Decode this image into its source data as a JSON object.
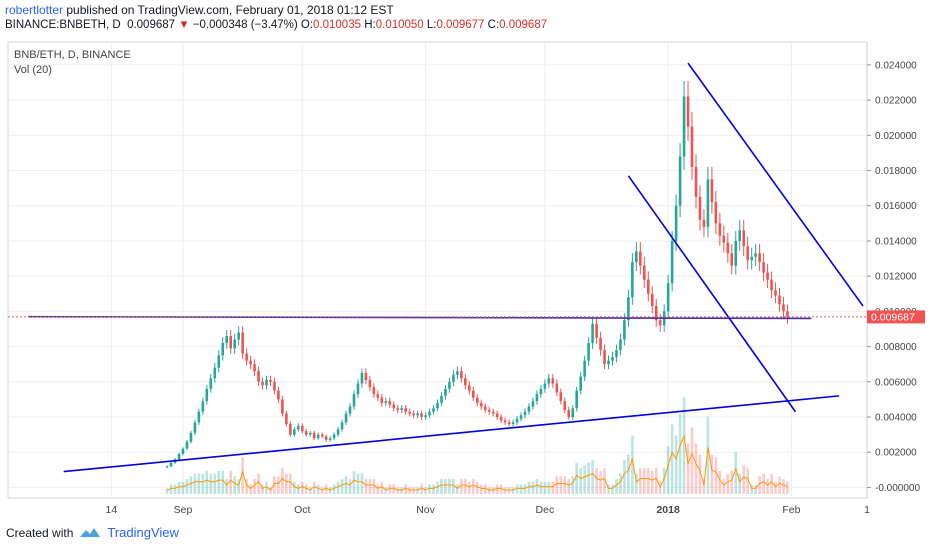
{
  "header": {
    "author": "robertlotter",
    "published_text": "published on TradingView.com, February 01, 2018 01:12 EST",
    "ticker_line": "BINANCE:BNBETH, D",
    "last": "0.009687",
    "change": "−0.000348 (−3.47%)",
    "o_label": "O:",
    "o_value": "0.010035",
    "h_label": "H:",
    "h_value": "0.010050",
    "l_label": "L:",
    "l_value": "0.009677",
    "c_label": "C:",
    "c_value": "0.009687"
  },
  "legend": {
    "symbol": "BNB/ETH, D, BINANCE",
    "volume": "Vol (20)"
  },
  "footer": {
    "created_with": "Created with",
    "brand": "TradingView"
  },
  "colors": {
    "up": "#26a69a",
    "down": "#ef5350",
    "trendline": "#0000e0",
    "support": "#4b2ea8",
    "price_tag": "#ef5350",
    "volume_ma": "#ff9800"
  },
  "chart_data": {
    "type": "candlestick",
    "title": "BNB/ETH, D, BINANCE",
    "x_ticks": [
      "14",
      "Sep",
      "Oct",
      "Nov",
      "Dec",
      "2018",
      "Feb",
      "1"
    ],
    "x_tick_dates": [
      "2017-08-14",
      "2017-09-01",
      "2017-10-01",
      "2017-11-01",
      "2017-12-01",
      "2018-01-01",
      "2018-02-01",
      "2018-02-20"
    ],
    "x_range": [
      "2017-07-19",
      "2018-02-20"
    ],
    "y_ticks": [
      "0.024000",
      "0.022000",
      "0.020000",
      "0.018000",
      "0.016000",
      "0.014000",
      "0.012000",
      "0.010000",
      "0.008000",
      "0.006000",
      "0.004000",
      "0.002000",
      "-0.000000"
    ],
    "ylim": [
      -0.0006,
      0.0253
    ],
    "last_price_label": "0.009687",
    "last_price": 0.009687,
    "grid": true,
    "candles_close": [
      0.0012,
      0.0014,
      0.0016,
      0.0019,
      0.0022,
      0.0026,
      0.0031,
      0.0037,
      0.0043,
      0.0049,
      0.0056,
      0.0062,
      0.0068,
      0.0075,
      0.0082,
      0.0086,
      0.0079,
      0.0084,
      0.0088,
      0.0076,
      0.0072,
      0.007,
      0.0066,
      0.006,
      0.0058,
      0.0061,
      0.006,
      0.0055,
      0.005,
      0.0042,
      0.0036,
      0.003,
      0.0033,
      0.0035,
      0.0032,
      0.003,
      0.0031,
      0.0028,
      0.003,
      0.0029,
      0.0027,
      0.0028,
      0.003,
      0.0033,
      0.0037,
      0.0042,
      0.0046,
      0.0053,
      0.0059,
      0.0065,
      0.0061,
      0.0057,
      0.0053,
      0.0051,
      0.0048,
      0.0049,
      0.0047,
      0.0045,
      0.0044,
      0.0045,
      0.0043,
      0.0042,
      0.0041,
      0.0042,
      0.004,
      0.0041,
      0.0043,
      0.0045,
      0.0048,
      0.0052,
      0.0056,
      0.006,
      0.0064,
      0.0066,
      0.0062,
      0.0058,
      0.0055,
      0.0051,
      0.0048,
      0.0046,
      0.0044,
      0.0043,
      0.0042,
      0.004,
      0.0038,
      0.0037,
      0.0036,
      0.0037,
      0.0039,
      0.0041,
      0.0043,
      0.0046,
      0.0049,
      0.0053,
      0.0056,
      0.0059,
      0.0062,
      0.0059,
      0.0054,
      0.0049,
      0.0044,
      0.004,
      0.0045,
      0.0055,
      0.0063,
      0.0072,
      0.0082,
      0.0093,
      0.0085,
      0.0078,
      0.007,
      0.0072,
      0.0074,
      0.0078,
      0.0084,
      0.0095,
      0.0108,
      0.0128,
      0.0134,
      0.0126,
      0.0118,
      0.011,
      0.0103,
      0.0095,
      0.0092,
      0.01,
      0.0116,
      0.014,
      0.016,
      0.0188,
      0.0222,
      0.0205,
      0.0182,
      0.0165,
      0.0152,
      0.0148,
      0.0175,
      0.0162,
      0.015,
      0.0143,
      0.0139,
      0.0133,
      0.0126,
      0.014,
      0.0146,
      0.0137,
      0.0129,
      0.0131,
      0.0133,
      0.0128,
      0.0122,
      0.0118,
      0.0112,
      0.0109,
      0.0104,
      0.01,
      0.009687
    ],
    "volume_note": "Volume (20) histogram with moving average",
    "trend_lines": [
      {
        "name": "rising support",
        "from": [
          "2017-08-02",
          0.0009
        ],
        "to": [
          "2018-02-13",
          0.0052
        ]
      },
      {
        "name": "horizontal level",
        "from": [
          "2017-07-24",
          0.0097
        ],
        "to": [
          "2018-02-06",
          0.0096
        ]
      },
      {
        "name": "inner channel upper",
        "from": [
          "2017-12-22",
          0.0177
        ],
        "to": [
          "2018-02-02",
          0.0043
        ]
      },
      {
        "name": "outer channel upper",
        "from": [
          "2018-01-06",
          0.0241
        ],
        "to": [
          "2018-02-19",
          0.0103
        ]
      }
    ]
  }
}
